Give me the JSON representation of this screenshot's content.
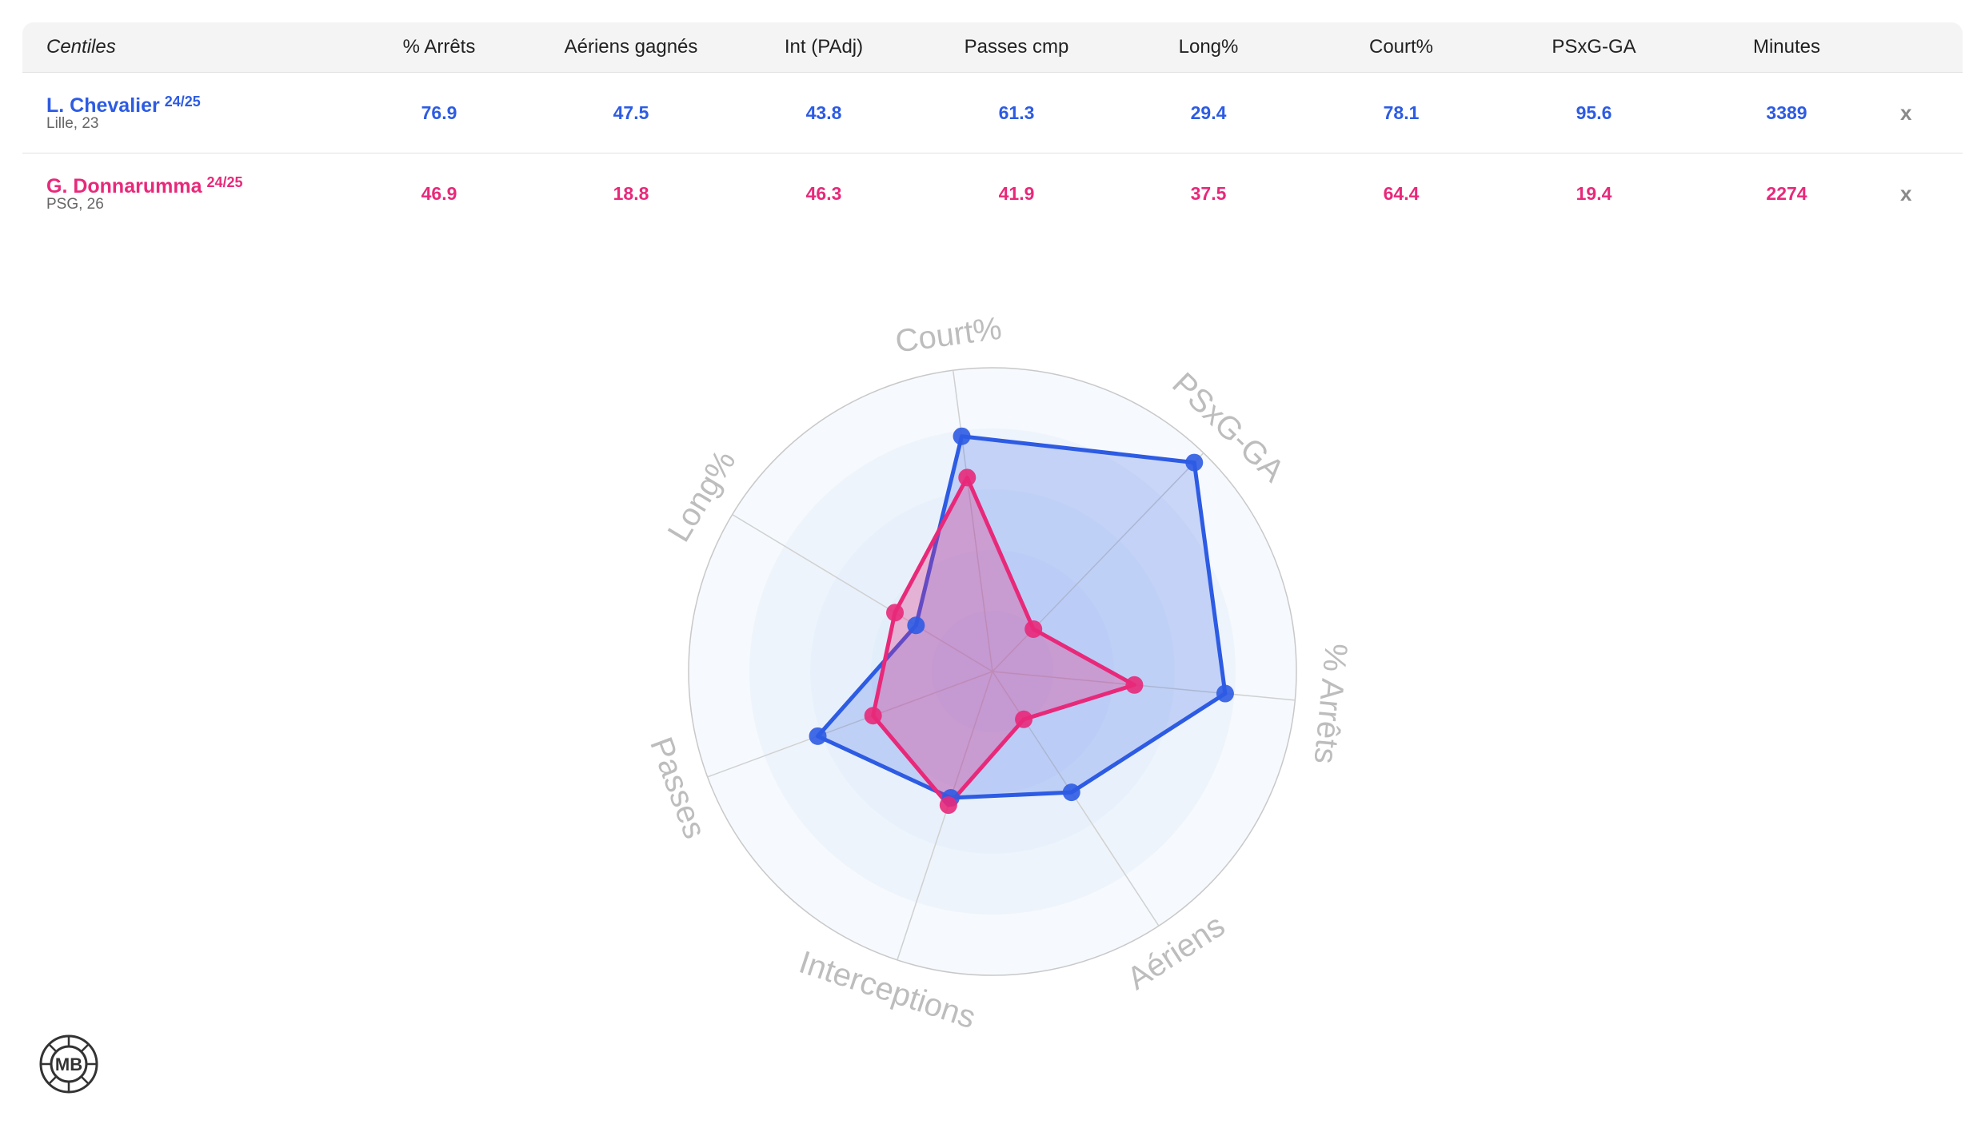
{
  "table": {
    "header_first": "Centiles",
    "columns": [
      "% Arrêts",
      "Aériens gagnés",
      "Int (PAdj)",
      "Passes cmp",
      "Long%",
      "Court%",
      "PSxG-GA",
      "Minutes"
    ],
    "remove_label": "x",
    "players": [
      {
        "name": "L. Chevalier",
        "season": "24/25",
        "club": "Lille, 23",
        "values": [
          "76.9",
          "47.5",
          "43.8",
          "61.3",
          "29.4",
          "78.1",
          "95.6",
          "3389"
        ]
      },
      {
        "name": "G. Donnarumma",
        "season": "24/25",
        "club": "PSG, 26",
        "values": [
          "46.9",
          "18.8",
          "46.3",
          "41.9",
          "37.5",
          "64.4",
          "19.4",
          "2274"
        ]
      }
    ]
  },
  "colors": {
    "player1": "#2d5be3",
    "player2": "#e8297a",
    "axis_label": "#bdbdbd"
  },
  "logo": {
    "text": "MB",
    "icon": "mb-logo-icon"
  },
  "chart_data": {
    "type": "radar",
    "axes": [
      "Court%",
      "PSxG-GA",
      "% Arrêts",
      "Aériens",
      "Interceptions",
      "Passes",
      "Long%"
    ],
    "range": [
      0,
      100
    ],
    "series": [
      {
        "name": "L. Chevalier",
        "values": [
          78.1,
          95.6,
          76.9,
          47.5,
          43.8,
          61.3,
          29.4
        ]
      },
      {
        "name": "G. Donnarumma",
        "values": [
          64.4,
          19.4,
          46.9,
          18.8,
          46.3,
          41.9,
          37.5
        ]
      }
    ]
  }
}
